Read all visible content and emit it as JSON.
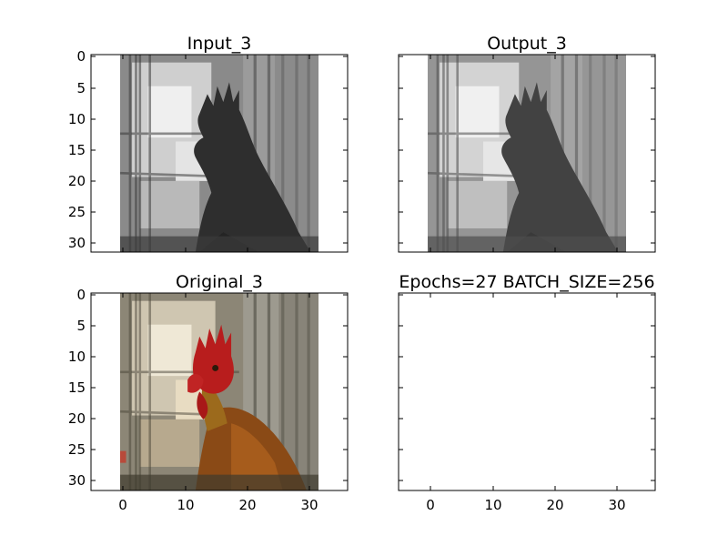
{
  "chart_data": [
    {
      "type": "image",
      "title": "Input_3",
      "content": "grayscale rooster photo",
      "colormap": "gray",
      "xlim": [
        -5,
        36
      ],
      "ylim": [
        31.5,
        -0.5
      ],
      "image_extent": [
        -0.5,
        31.5,
        31.5,
        -0.5
      ],
      "xticks": [],
      "yticks": [
        0,
        5,
        10,
        15,
        20,
        25,
        30
      ]
    },
    {
      "type": "image",
      "title": "Output_3",
      "content": "grayscale rooster photo (reconstruction)",
      "colormap": "gray",
      "xlim": [
        -5,
        36
      ],
      "ylim": [
        31.5,
        -0.5
      ],
      "image_extent": [
        -0.5,
        31.5,
        31.5,
        -0.5
      ],
      "xticks": [],
      "yticks": []
    },
    {
      "type": "image",
      "title": "Original_3",
      "content": "color rooster photo",
      "colormap": "rgb",
      "xlim": [
        -5,
        36
      ],
      "ylim": [
        31.5,
        -0.5
      ],
      "image_extent": [
        -0.5,
        31.5,
        31.5,
        -0.5
      ],
      "xticks": [
        0,
        10,
        20,
        30
      ],
      "yticks": [
        0,
        5,
        10,
        15,
        20,
        25,
        30
      ]
    },
    {
      "type": "empty",
      "title": "Epochs=27 BATCH_SIZE=256",
      "xlim": [
        -5,
        36
      ],
      "ylim": [
        31.5,
        -0.5
      ],
      "xticks": [
        0,
        10,
        20,
        30
      ],
      "yticks": []
    }
  ]
}
